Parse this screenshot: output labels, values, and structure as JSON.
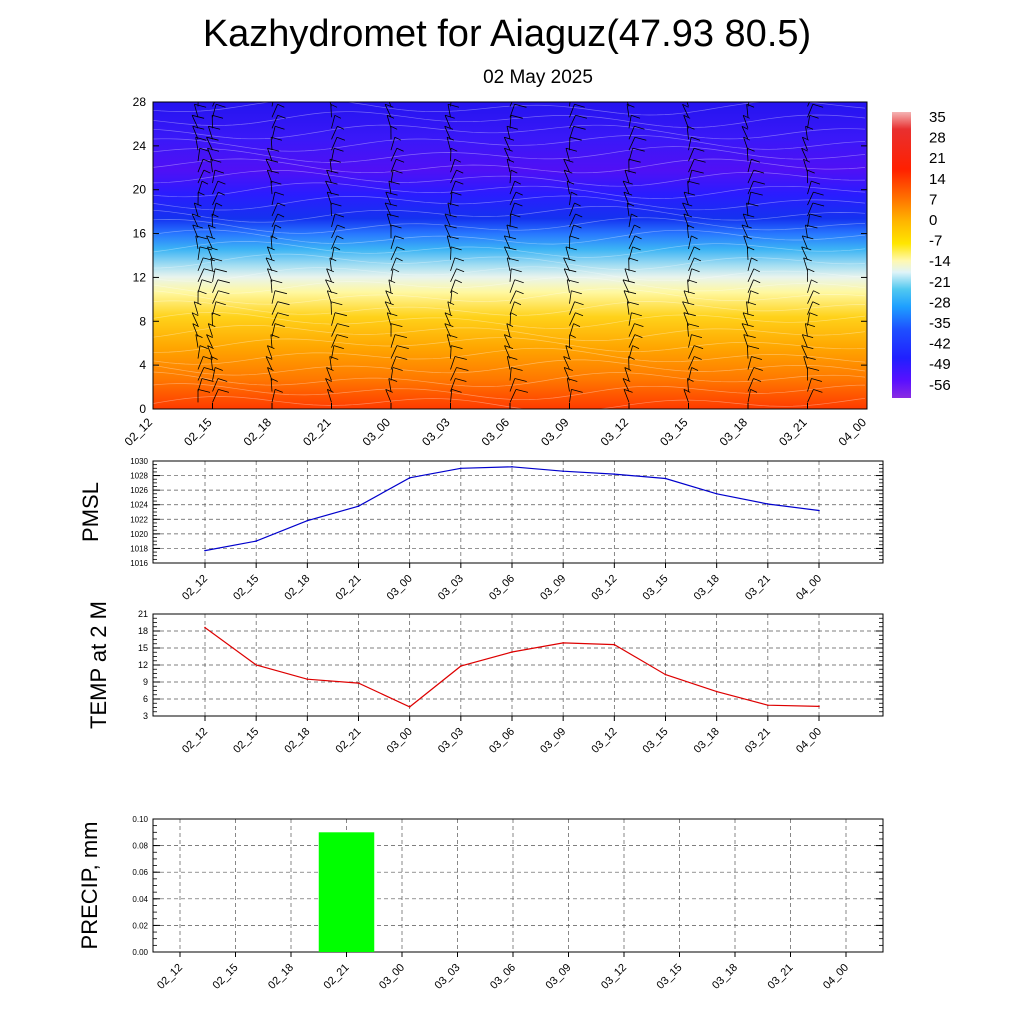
{
  "title": "Kazhydromet for Aiaguz(47.93 80.5)",
  "subtitle": "02 May 2025",
  "time_labels": [
    "02_12",
    "02_15",
    "02_18",
    "02_21",
    "03_00",
    "03_03",
    "03_06",
    "03_09",
    "03_12",
    "03_15",
    "03_18",
    "03_21",
    "04_00"
  ],
  "chart_data": [
    {
      "type": "heatmap",
      "variable": "temperature profile with wind barbs",
      "x": [
        "02_12",
        "02_15",
        "02_18",
        "02_21",
        "03_00",
        "03_03",
        "03_06",
        "03_09",
        "03_12",
        "03_15",
        "03_18",
        "03_21",
        "04_00"
      ],
      "ylim": [
        0,
        28
      ],
      "yticks": [
        0,
        4,
        8,
        12,
        16,
        20,
        24,
        28
      ],
      "colorbar_labels": [
        "35",
        "28",
        "21",
        "14",
        "7",
        "0",
        "-7",
        "-14",
        "-21",
        "-28",
        "-35",
        "-42",
        "-49",
        "-56"
      ],
      "colorbar_range": [
        -60,
        38
      ],
      "colorscale": [
        "#8a2be2",
        "#6a00ff",
        "#2020ff",
        "#1e64ff",
        "#1ea0ff",
        "#40c8f0",
        "#a0e6f0",
        "#f0f8e0",
        "#fff0a0",
        "#ffd800",
        "#ffb000",
        "#ff8c00",
        "#ff5a00",
        "#ff2000",
        "#e00000",
        "#f0a0a0"
      ]
    },
    {
      "type": "line",
      "ylabel": "PMSL",
      "x": [
        "02_12",
        "02_15",
        "02_18",
        "02_21",
        "03_00",
        "03_03",
        "03_06",
        "03_09",
        "03_12",
        "03_15",
        "03_18",
        "03_21",
        "04_00"
      ],
      "values": [
        1017.7,
        1019.0,
        1021.8,
        1023.8,
        1027.7,
        1029.0,
        1029.2,
        1028.6,
        1028.2,
        1027.6,
        1025.5,
        1024.1,
        1023.2
      ],
      "ylim": [
        1016,
        1030
      ],
      "yticks": [
        1016,
        1018,
        1020,
        1022,
        1024,
        1026,
        1028,
        1030
      ],
      "color": "#0000cc"
    },
    {
      "type": "line",
      "ylabel": "TEMP at 2 M",
      "x": [
        "02_12",
        "02_15",
        "02_18",
        "02_21",
        "03_00",
        "03_03",
        "03_06",
        "03_09",
        "03_12",
        "03_15",
        "03_18",
        "03_21",
        "04_00"
      ],
      "values": [
        18.6,
        12.0,
        9.5,
        8.8,
        4.6,
        11.8,
        14.3,
        15.9,
        15.6,
        10.3,
        7.3,
        4.9,
        4.7
      ],
      "ylim": [
        3,
        21
      ],
      "yticks": [
        3,
        6,
        9,
        12,
        15,
        18,
        21
      ],
      "color": "#dd0000"
    },
    {
      "type": "bar",
      "ylabel": "PRECIP, mm",
      "x": [
        "02_12",
        "02_15",
        "02_18",
        "02_21",
        "03_00",
        "03_03",
        "03_06",
        "03_09",
        "03_12",
        "03_15",
        "03_18",
        "03_21",
        "04_00"
      ],
      "values": [
        0,
        0,
        0,
        0.09,
        0,
        0,
        0,
        0,
        0,
        0,
        0,
        0,
        0
      ],
      "ylim": [
        0,
        0.1
      ],
      "yticks": [
        "0.00",
        "0.02",
        "0.04",
        "0.06",
        "0.08",
        "0.10"
      ],
      "color": "#00ff00"
    }
  ]
}
